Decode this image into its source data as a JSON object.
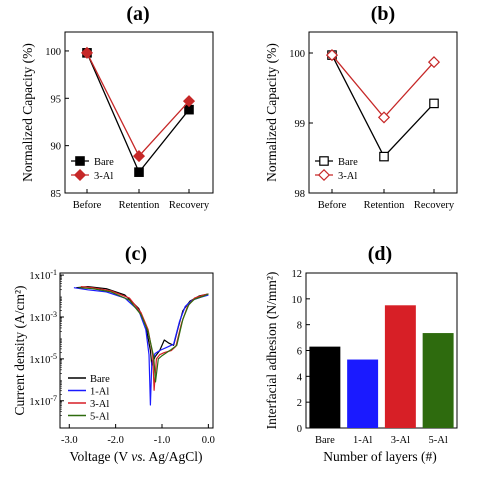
{
  "colors": {
    "black": "#000000",
    "red": "#c62828",
    "blue": "#1a1aff",
    "green": "#2e6b0e",
    "barRed": "#d71f26"
  },
  "chart_data": [
    {
      "panel": "(a)",
      "type": "line",
      "categories": [
        "Before",
        "Retention",
        "Recovery"
      ],
      "ylabel": "Normalized Capacity (%)",
      "ylim": [
        85,
        102
      ],
      "yticks": [
        85,
        90,
        95,
        100
      ],
      "series": [
        {
          "name": "Bare",
          "values": [
            99.8,
            87.2,
            93.8
          ],
          "color": "#000000",
          "marker": "filled-square"
        },
        {
          "name": "3-Al",
          "values": [
            99.8,
            88.9,
            94.7
          ],
          "color": "#c62828",
          "marker": "filled-diamond"
        }
      ],
      "legend": "bottom-left"
    },
    {
      "panel": "(b)",
      "type": "line",
      "categories": [
        "Before",
        "Retention",
        "Recovery"
      ],
      "ylabel": "Normalized Capacity (%)",
      "ylim": [
        98,
        100.3
      ],
      "yticks": [
        98,
        99,
        100
      ],
      "series": [
        {
          "name": "Bare",
          "values": [
            99.97,
            98.52,
            99.28
          ],
          "color": "#000000",
          "marker": "open-square"
        },
        {
          "name": "3-Al",
          "values": [
            99.97,
            99.08,
            99.87
          ],
          "color": "#c62828",
          "marker": "open-diamond"
        }
      ],
      "legend": "bottom-left"
    },
    {
      "panel": "(c)",
      "type": "line",
      "xlabel_parts": [
        "Voltage (V ",
        "vs.",
        " Ag/AgCl)"
      ],
      "ylabel": "Current density (A/cm²)",
      "xlim": [
        -3.2,
        0.1
      ],
      "xticks": [
        -3.0,
        -2.0,
        -1.0,
        0.0
      ],
      "xtick_labels": [
        "-3.0",
        "-2.0",
        "-1.0",
        "0.0"
      ],
      "yscale": "log",
      "ylim_log10": [
        -8.3,
        -0.9
      ],
      "yticks_log10": [
        -7,
        -5,
        -3,
        -1
      ],
      "ytick_labels": [
        "1x10-7",
        "1x10-5",
        "1x10-3",
        "1x10-1"
      ],
      "series": [
        {
          "name": "Bare",
          "color": "#000000",
          "x": [
            -2.85,
            -2.6,
            -2.2,
            -1.8,
            -1.5,
            -1.35,
            -1.25,
            -1.22,
            -1.15,
            -1.05,
            -0.95,
            -0.85,
            -0.75,
            -0.65,
            -0.55,
            -0.4,
            -0.2,
            0.0
          ],
          "y": [
            -1.6,
            -1.55,
            -1.65,
            -1.95,
            -2.6,
            -3.4,
            -4.6,
            -5.3,
            -4.9,
            -4.6,
            -4.1,
            -4.25,
            -4.35,
            -3.5,
            -2.7,
            -2.25,
            -2.0,
            -1.9
          ]
        },
        {
          "name": "1-Al",
          "color": "#1a1aff",
          "x": [
            -2.9,
            -2.6,
            -2.2,
            -1.8,
            -1.5,
            -1.35,
            -1.28,
            -1.25,
            -1.22,
            -1.15,
            -1.05,
            -0.9,
            -0.75,
            -0.62,
            -0.5,
            -0.35,
            -0.15,
            0.0
          ],
          "y": [
            -1.6,
            -1.7,
            -1.8,
            -2.1,
            -2.7,
            -3.6,
            -4.8,
            -7.2,
            -5.2,
            -4.75,
            -4.6,
            -4.45,
            -4.3,
            -3.2,
            -2.5,
            -2.2,
            -2.05,
            -1.95
          ]
        },
        {
          "name": "3-Al",
          "color": "#d71f26",
          "x": [
            -2.75,
            -2.5,
            -2.1,
            -1.7,
            -1.45,
            -1.3,
            -1.2,
            -1.17,
            -1.12,
            -1.05,
            -0.95,
            -0.8,
            -0.7,
            -0.58,
            -0.45,
            -0.3,
            -0.1,
            0.0
          ],
          "y": [
            -1.55,
            -1.6,
            -1.75,
            -2.1,
            -2.8,
            -3.6,
            -4.8,
            -6.5,
            -5.0,
            -4.8,
            -4.7,
            -4.6,
            -4.4,
            -3.3,
            -2.5,
            -2.1,
            -1.95,
            -1.9
          ]
        },
        {
          "name": "5-Al",
          "color": "#2e6b0e",
          "x": [
            -2.8,
            -2.5,
            -2.1,
            -1.7,
            -1.45,
            -1.3,
            -1.18,
            -1.14,
            -1.08,
            -1.0,
            -0.9,
            -0.8,
            -0.68,
            -0.55,
            -0.42,
            -0.3,
            -0.1,
            0.0
          ],
          "y": [
            -1.6,
            -1.65,
            -1.8,
            -2.2,
            -2.9,
            -3.7,
            -4.9,
            -6.1,
            -5.0,
            -4.85,
            -4.7,
            -4.55,
            -4.35,
            -3.1,
            -2.4,
            -2.15,
            -2.0,
            -1.9
          ]
        }
      ],
      "legend": "bottom-left"
    },
    {
      "panel": "(d)",
      "type": "bar",
      "categories": [
        "Bare",
        "1-Al",
        "3-Al",
        "5-Al"
      ],
      "values": [
        6.3,
        5.3,
        9.5,
        7.35
      ],
      "colors": [
        "#000000",
        "#1a1aff",
        "#d71f26",
        "#2e6b0e"
      ],
      "xlabel": "Number of layers (#)",
      "ylabel": "Interfacial adhesion (N/mm²)",
      "ylim": [
        0,
        12
      ],
      "yticks": [
        0,
        2,
        4,
        6,
        8,
        10,
        12
      ]
    }
  ]
}
